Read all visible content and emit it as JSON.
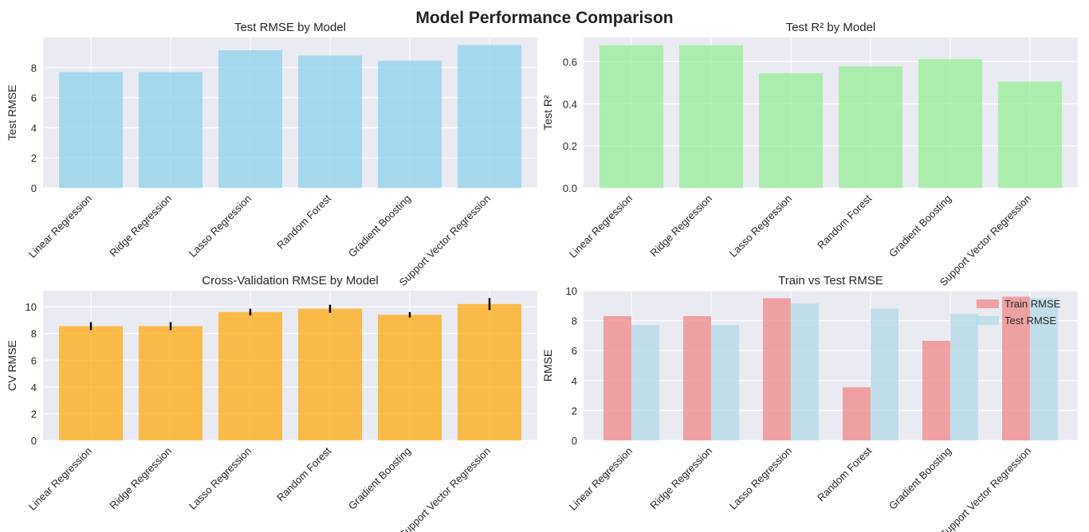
{
  "figure": {
    "title": "Model Performance Comparison",
    "colors": {
      "panel_bg": "#eaeaf2",
      "grid": "#ffffff",
      "test_rmse": "#87ceeb",
      "test_r2": "#90ee90",
      "cv_rmse": "#ffa500",
      "train_rmse": "#f08080",
      "test_rmse_pair": "#add8e6",
      "error_bar": "#000000"
    }
  },
  "chart_data": [
    {
      "type": "bar",
      "title": "Test RMSE by Model",
      "xlabel": "",
      "ylabel": "Test RMSE",
      "categories": [
        "Linear Regression",
        "Ridge Regression",
        "Lasso Regression",
        "Random Forest",
        "Gradient Boosting",
        "Support Vector Regression"
      ],
      "values": [
        7.7,
        7.7,
        9.15,
        8.8,
        8.45,
        9.5
      ],
      "ylim": [
        0,
        10
      ],
      "yticks": [
        "0",
        "2",
        "4",
        "6",
        "8"
      ],
      "grid": true,
      "color": "#87ceeb"
    },
    {
      "type": "bar",
      "title": "Test R² by Model",
      "xlabel": "",
      "ylabel": "Test R²",
      "categories": [
        "Linear Regression",
        "Ridge Regression",
        "Lasso Regression",
        "Random Forest",
        "Gradient Boosting",
        "Support Vector Regression"
      ],
      "values": [
        0.678,
        0.678,
        0.545,
        0.578,
        0.612,
        0.505
      ],
      "ylim": [
        0,
        0.715
      ],
      "yticks": [
        "0.0",
        "0.2",
        "0.4",
        "0.6"
      ],
      "grid": true,
      "color": "#90ee90"
    },
    {
      "type": "bar",
      "title": "Cross-Validation RMSE by Model",
      "xlabel": "",
      "ylabel": "CV RMSE",
      "categories": [
        "Linear Regression",
        "Ridge Regression",
        "Lasso Regression",
        "Random Forest",
        "Gradient Boosting",
        "Support Vector Regression"
      ],
      "values": [
        8.55,
        8.55,
        9.6,
        9.85,
        9.4,
        10.2
      ],
      "errors": [
        0.3,
        0.3,
        0.25,
        0.3,
        0.2,
        0.45
      ],
      "ylim": [
        0,
        11.2
      ],
      "yticks": [
        "0",
        "2",
        "4",
        "6",
        "8",
        "10"
      ],
      "grid": true,
      "color": "#ffa500"
    },
    {
      "type": "bar",
      "title": "Train vs Test RMSE",
      "xlabel": "",
      "ylabel": "RMSE",
      "categories": [
        "Linear Regression",
        "Ridge Regression",
        "Lasso Regression",
        "Random Forest",
        "Gradient Boosting",
        "Support Vector Regression"
      ],
      "series": [
        {
          "name": "Train RMSE",
          "values": [
            8.3,
            8.3,
            9.5,
            3.55,
            6.65,
            9.6
          ],
          "color": "#f08080"
        },
        {
          "name": "Test RMSE",
          "values": [
            7.7,
            7.7,
            9.15,
            8.8,
            8.45,
            9.5
          ],
          "color": "#add8e6"
        }
      ],
      "ylim": [
        0,
        10
      ],
      "yticks": [
        "0",
        "2",
        "4",
        "6",
        "8",
        "10"
      ],
      "grid": true,
      "legend": "top-right"
    }
  ]
}
